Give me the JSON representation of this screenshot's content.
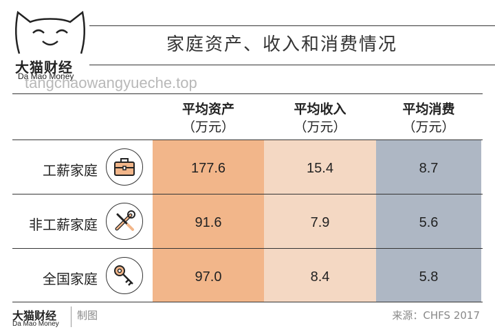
{
  "logo": {
    "name_cn": "大猫财经",
    "name_en": "Da Mao Money"
  },
  "title": "家庭资产、收入和消费情况",
  "watermark": "tangchaowangyueche.top",
  "table": {
    "headers": [
      {
        "label": "平均资产",
        "unit": "（万元）"
      },
      {
        "label": "平均收入",
        "unit": "（万元）"
      },
      {
        "label": "平均消费",
        "unit": "（万元）"
      }
    ],
    "rows": [
      {
        "label": "工薪家庭",
        "icon": "briefcase-icon",
        "values": [
          "177.6",
          "15.4",
          "8.7"
        ]
      },
      {
        "label": "非工薪家庭",
        "icon": "tools-icon",
        "values": [
          "91.6",
          "7.9",
          "5.6"
        ]
      },
      {
        "label": "全国家庭",
        "icon": "key-icon",
        "values": [
          "97.0",
          "8.4",
          "5.8"
        ]
      }
    ],
    "column_colors": [
      "#f2b68a",
      "#f4d8c3",
      "#aeb7c4"
    ]
  },
  "footer": {
    "brand_cn": "大猫财经",
    "brand_en": "Da Mao Money",
    "made": "制图",
    "source": "来源：CHFS 2017"
  }
}
